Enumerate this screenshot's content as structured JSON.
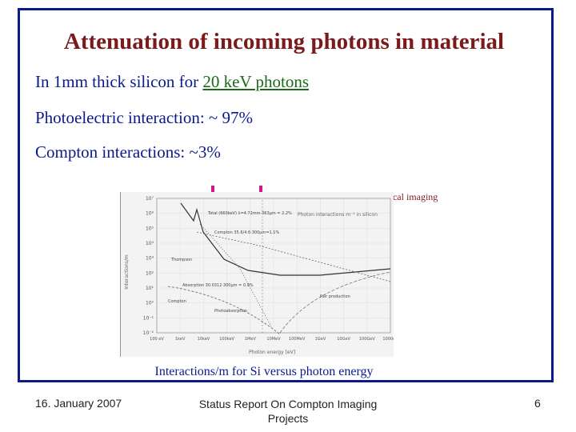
{
  "slide": {
    "title": "Attenuation of incoming photons in material",
    "line1_pre": "In 1mm thick silicon for  ",
    "line1_energy": "20 keV photons",
    "line2": "Photoelectric interaction: ~ 97%",
    "line3": "Compton interactions: ~3%",
    "note": "Interesting region for medical imaging",
    "caption": "Interactions/m for Si versus photon energy",
    "footer_date": "16. January 2007",
    "footer_title": "Status Report On Compton Imaging Projects",
    "page_number": "6",
    "colors": {
      "frame": "#0a1a8c",
      "title": "#7a1a1a",
      "highlight": "#1a6a1a",
      "arrow": "#d4158a"
    }
  },
  "chart_data": {
    "type": "line",
    "title": "Photon interactions m⁻¹ in silicon",
    "xlabel": "Photon energy [eV]",
    "ylabel": "Interactions/m",
    "x_ticks": [
      "100 eV",
      "1keV",
      "10keV",
      "100keV",
      "1MeV",
      "10MeV",
      "100MeV",
      "1GeV",
      "10GeV",
      "100GeV",
      "1000eV"
    ],
    "y_ticks": [
      "10⁷",
      "10⁶",
      "10⁵",
      "10⁴",
      "10³",
      "10²",
      "10¹",
      "10⁰",
      "10⁻¹",
      "10⁻²"
    ],
    "annotations": [
      "Total (660keV) λ=4.72mm·363µm = 2.2%",
      "Compton 35.6/4.6·300µm=1.1%",
      "Absorption 30.0312·300µm = 0.9%",
      "Thompson",
      "Compton",
      "Photoabsorption",
      "Pair production"
    ]
  }
}
